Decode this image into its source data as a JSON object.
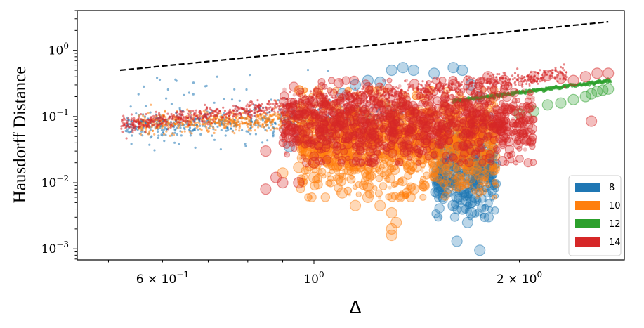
{
  "chart_data": {
    "type": "scatter",
    "title": "",
    "xlabel": "Δ",
    "ylabel": "Hausdorff Distance",
    "xscale": "log",
    "yscale": "log",
    "xlim": [
      0.45,
      2.85
    ],
    "ylim": [
      0.00068,
      4.0
    ],
    "x_ticks": [
      {
        "value": 0.6,
        "base": "6 × 10",
        "exp": "−1"
      },
      {
        "value": 1.0,
        "base": "10",
        "exp": "0"
      },
      {
        "value": 2.0,
        "base": "2 × 10",
        "exp": "0"
      }
    ],
    "y_ticks": [
      {
        "value": 0.001,
        "base": "10",
        "exp": "−3"
      },
      {
        "value": 0.01,
        "base": "10",
        "exp": "−2"
      },
      {
        "value": 0.1,
        "base": "10",
        "exp": "−1"
      },
      {
        "value": 1.0,
        "base": "10",
        "exp": "0"
      }
    ],
    "reference_line": {
      "style": "dashed",
      "color": "#000000",
      "x": [
        0.52,
        2.7
      ],
      "y": [
        0.5,
        2.7
      ]
    },
    "legend": {
      "placement": "bottom-right",
      "entries": [
        "8",
        "10",
        "12",
        "14"
      ]
    },
    "series": [
      {
        "name": "8",
        "color": "#1f77b4",
        "small_points": {
          "count": 700,
          "x_range": [
            0.53,
            1.35
          ],
          "trend_y": [
            0.072,
            0.11
          ],
          "spread": 0.2,
          "outlier_range_y": [
            0.03,
            0.55
          ]
        },
        "large_points": [
          [
            0.92,
            0.035
          ],
          [
            0.95,
            0.045
          ],
          [
            1.05,
            0.05
          ],
          [
            1.1,
            0.22
          ],
          [
            1.15,
            0.3
          ],
          [
            1.2,
            0.35
          ],
          [
            1.25,
            0.33
          ],
          [
            1.3,
            0.5
          ],
          [
            1.35,
            0.55
          ],
          [
            1.4,
            0.5
          ],
          [
            1.5,
            0.45
          ],
          [
            1.6,
            0.55
          ],
          [
            1.65,
            0.5
          ],
          [
            1.7,
            0.3
          ],
          [
            1.75,
            0.2
          ],
          [
            1.8,
            0.1
          ],
          [
            1.85,
            0.07
          ],
          [
            1.6,
            0.01
          ],
          [
            1.62,
            0.006
          ],
          [
            1.65,
            0.004
          ],
          [
            1.68,
            0.0025
          ],
          [
            1.62,
            0.0013
          ],
          [
            1.7,
            0.005
          ],
          [
            1.72,
            0.015
          ],
          [
            1.58,
            0.02
          ],
          [
            1.75,
            0.00095
          ],
          [
            1.66,
            0.03
          ],
          [
            1.55,
            0.04
          ],
          [
            1.68,
            0.012
          ],
          [
            1.75,
            0.02
          ],
          [
            1.6,
            0.0045
          ],
          [
            1.64,
            0.008
          ],
          [
            1.7,
            0.0035
          ],
          [
            1.52,
            0.007
          ],
          [
            1.78,
            0.04
          ]
        ],
        "cloud": {
          "count": 400,
          "x_range": [
            1.5,
            1.85
          ],
          "y_range": [
            0.003,
            0.08
          ]
        }
      },
      {
        "name": "10",
        "color": "#ff7f0e",
        "small_points": {
          "count": 600,
          "x_range": [
            0.55,
            1.0
          ],
          "trend_y": [
            0.075,
            0.095
          ],
          "spread": 0.15
        },
        "large_points": [
          [
            0.9,
            0.014
          ],
          [
            0.95,
            0.017
          ],
          [
            1.0,
            0.012
          ],
          [
            1.05,
            0.02
          ],
          [
            1.1,
            0.007
          ],
          [
            1.15,
            0.0045
          ],
          [
            1.2,
            0.006
          ],
          [
            1.25,
            0.0045
          ],
          [
            1.3,
            0.0035
          ],
          [
            1.3,
            0.002
          ],
          [
            1.32,
            0.0025
          ],
          [
            1.3,
            0.0016
          ],
          [
            1.4,
            0.008
          ],
          [
            1.45,
            0.009
          ],
          [
            1.2,
            0.009
          ],
          [
            1.0,
            0.02
          ],
          [
            1.05,
            0.025
          ],
          [
            1.5,
            0.02
          ],
          [
            1.6,
            0.05
          ],
          [
            1.7,
            0.08
          ]
        ],
        "cloud": {
          "count": 1400,
          "x_range": [
            0.95,
            1.85
          ],
          "y_range": [
            0.006,
            0.25
          ]
        }
      },
      {
        "name": "12",
        "color": "#2ca02c",
        "line_points": {
          "count": 260,
          "x_range": [
            1.6,
            2.72
          ],
          "y_range": [
            0.17,
            0.35
          ]
        },
        "large_points": [
          [
            2.0,
            0.11
          ],
          [
            2.1,
            0.12
          ],
          [
            2.2,
            0.15
          ],
          [
            2.3,
            0.16
          ],
          [
            2.4,
            0.18
          ],
          [
            2.5,
            0.2
          ],
          [
            2.55,
            0.22
          ],
          [
            2.6,
            0.24
          ],
          [
            2.65,
            0.25
          ],
          [
            2.7,
            0.26
          ]
        ]
      },
      {
        "name": "14",
        "color": "#d62728",
        "small_points": {
          "count": 1100,
          "x_range": [
            0.52,
            2.35
          ],
          "trend_y": [
            0.075,
            0.45
          ],
          "spread": 0.12
        },
        "large_points": [
          [
            0.85,
            0.03
          ],
          [
            0.85,
            0.008
          ],
          [
            0.88,
            0.012
          ],
          [
            0.9,
            0.01
          ],
          [
            0.95,
            0.01
          ],
          [
            1.0,
            0.02
          ],
          [
            1.1,
            0.1
          ],
          [
            2.1,
            0.4
          ],
          [
            2.3,
            0.38
          ],
          [
            2.4,
            0.35
          ],
          [
            2.5,
            0.4
          ],
          [
            2.6,
            0.45
          ],
          [
            2.7,
            0.45
          ],
          [
            2.55,
            0.085
          ],
          [
            1.8,
            0.4
          ],
          [
            1.6,
            0.3
          ],
          [
            1.9,
            0.35
          ],
          [
            2.2,
            0.42
          ]
        ],
        "cloud": {
          "count": 1200,
          "x_range": [
            0.9,
            2.1
          ],
          "y_range": [
            0.02,
            0.35
          ]
        }
      }
    ]
  }
}
